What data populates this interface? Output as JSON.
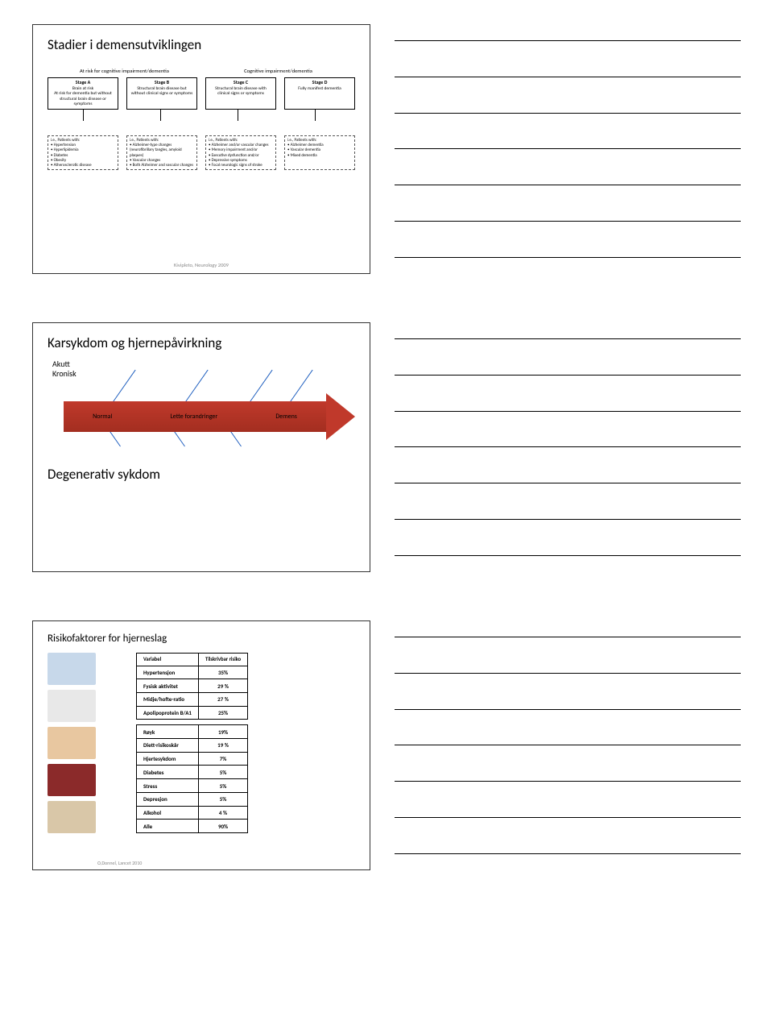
{
  "slide1": {
    "title": "Stadier i demensutviklingen",
    "header_left": "At risk for cognitive impairment/dementia",
    "header_right": "Cognitive impairment/dementia",
    "stages": [
      {
        "name": "Stage A",
        "desc": "Brain at risk\nAt risk for dementia but without structural brain disease or symptoms"
      },
      {
        "name": "Stage B",
        "desc": "Structural brain disease but without clinical signs or symptoms"
      },
      {
        "name": "Stage C",
        "desc": "Structural brain disease with clinical signs or symptoms"
      },
      {
        "name": "Stage D",
        "desc": "Fully manifest dementia"
      }
    ],
    "examples": [
      "i.e., Patients with:\n• Hypertension\n• Hyperlipidemia\n• Diabetes\n• Obesity\n• Atherosclerotic disease",
      "i.e., Patients with:\n• Alzheimer-type changes (neurofibrillary tangles, amyloid plaques)\n• Vascular changes\n• Both Alzheimer and vascular changes",
      "i.e., Patients with:\n• Alzheimer and/or vascular changes\n• Memory impairment and/or\n• Executive dysfunction and/or\n• Depressive symptoms\n• Focal neurologic signs of stroke",
      "i.e., Patients with:\n• Alzheimer dementia\n• Vascular dementia\n• Mixed dementia"
    ],
    "citation": "Kivipleto, Neurology 2009"
  },
  "slide2": {
    "title": "Karsykdom og hjernepåvirkning",
    "sub1": "Akutt",
    "sub2": "Kronisk",
    "arrow_labels": [
      "Normal",
      "Lette forandringer",
      "Demens"
    ],
    "bottom_title": "Degenerativ sykdom",
    "arrow_color": "#c0392b",
    "line_color": "#1f5fbf"
  },
  "slide3": {
    "title": "Risikofaktorer for hjerneslag",
    "colh1": "Variabel",
    "colh2": "Tilskrivbar risiko",
    "rows_top": [
      {
        "v": "Hypertensjon",
        "r": "35%"
      },
      {
        "v": "Fysisk aktivitet",
        "r": "29 %"
      },
      {
        "v": "Midje/hofte-ratio",
        "r": "27 %"
      },
      {
        "v": "Apolipoprotein B/A1",
        "r": "25%"
      }
    ],
    "rows_bottom": [
      {
        "v": "Røyk",
        "r": "19%"
      },
      {
        "v": "Diett-risikoskår",
        "r": "19 %"
      },
      {
        "v": "Hjertesykdom",
        "r": "7%"
      },
      {
        "v": "Diabetes",
        "r": "5%"
      },
      {
        "v": "Stress",
        "r": "5%"
      },
      {
        "v": "Depresjon",
        "r": "5%"
      },
      {
        "v": "Alkohol",
        "r": "4 %"
      },
      {
        "v": "Alle",
        "r": "90%"
      }
    ],
    "citation": "O,Donnel, Lancet 2010",
    "placeholder_colors": [
      "#c7d8ea",
      "#e8e8e8",
      "#e8c7a0",
      "#8b2a2a",
      "#d9c7a8"
    ]
  },
  "notes_line_count": 7
}
